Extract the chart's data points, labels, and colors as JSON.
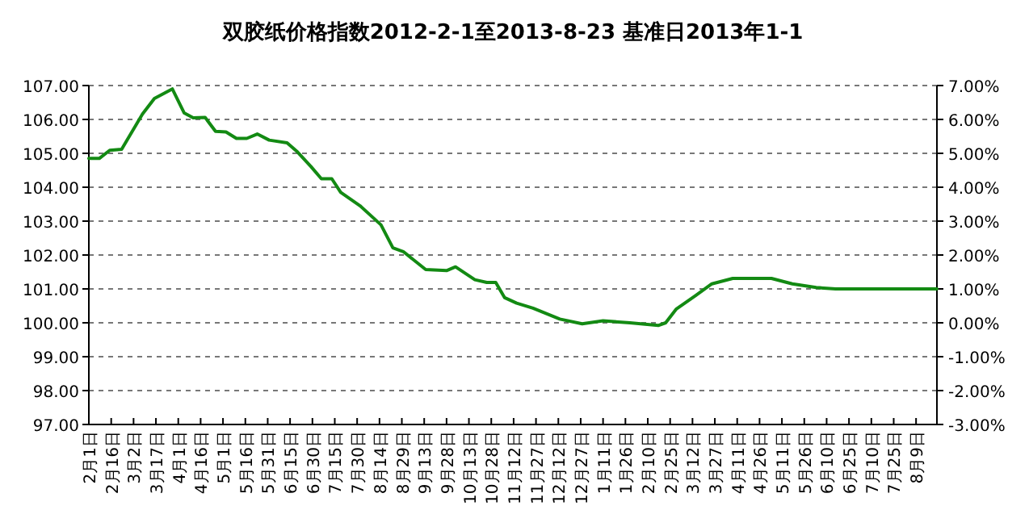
{
  "chart_data": {
    "type": "line",
    "title": "双胶纸价格指数2012-2-1至2013-8-23 基准日2013年1-1",
    "x": [
      "2012-02-01",
      "2012-02-08",
      "2012-02-15",
      "2012-02-23",
      "2012-03-08",
      "2012-03-16",
      "2012-03-28",
      "2012-04-05",
      "2012-04-11",
      "2012-04-19",
      "2012-04-26",
      "2012-05-03",
      "2012-05-10",
      "2012-05-17",
      "2012-05-24",
      "2012-06-01",
      "2012-06-13",
      "2012-06-20",
      "2012-06-29",
      "2012-07-06",
      "2012-07-13",
      "2012-07-19",
      "2012-08-01",
      "2012-08-15",
      "2012-08-23",
      "2012-08-30",
      "2012-09-14",
      "2012-09-28",
      "2012-10-04",
      "2012-10-17",
      "2012-10-25",
      "2012-10-31",
      "2012-11-06",
      "2012-11-14",
      "2012-11-25",
      "2012-12-13",
      "2012-12-28",
      "2013-01-11",
      "2013-01-29",
      "2013-02-17",
      "2013-02-22",
      "2013-03-01",
      "2013-03-14",
      "2013-03-25",
      "2013-04-08",
      "2013-05-04",
      "2013-05-18",
      "2013-06-03",
      "2013-06-16",
      "2013-08-23"
    ],
    "series": [
      {
        "color": "#138a13",
        "values": [
          104.85,
          104.85,
          105.09,
          105.12,
          106.16,
          106.62,
          106.9,
          106.19,
          106.05,
          106.06,
          105.65,
          105.63,
          105.44,
          105.44,
          105.57,
          105.39,
          105.31,
          105.04,
          104.61,
          104.25,
          104.25,
          103.85,
          103.45,
          102.89,
          102.21,
          102.1,
          101.57,
          101.54,
          101.65,
          101.27,
          101.19,
          101.19,
          100.74,
          100.58,
          100.43,
          100.11,
          99.97,
          100.06,
          100.0,
          99.92,
          100.0,
          100.4,
          100.8,
          101.15,
          101.31,
          101.31,
          101.15,
          101.04,
          101.0,
          101.0
        ]
      }
    ],
    "xlim": [
      "2012-02-01",
      "2013-08-23"
    ],
    "xticks": [
      {
        "value": "2012-02-01",
        "label": "2月1日"
      },
      {
        "value": "2012-02-16",
        "label": "2月16日"
      },
      {
        "value": "2012-03-02",
        "label": "3月2日"
      },
      {
        "value": "2012-03-17",
        "label": "3月17日"
      },
      {
        "value": "2012-04-01",
        "label": "4月1日"
      },
      {
        "value": "2012-04-16",
        "label": "4月16日"
      },
      {
        "value": "2012-05-01",
        "label": "5月1日"
      },
      {
        "value": "2012-05-16",
        "label": "5月16日"
      },
      {
        "value": "2012-05-31",
        "label": "5月31日"
      },
      {
        "value": "2012-06-15",
        "label": "6月15日"
      },
      {
        "value": "2012-06-30",
        "label": "6月30日"
      },
      {
        "value": "2012-07-15",
        "label": "7月15日"
      },
      {
        "value": "2012-07-30",
        "label": "7月30日"
      },
      {
        "value": "2012-08-14",
        "label": "8月14日"
      },
      {
        "value": "2012-08-29",
        "label": "8月29日"
      },
      {
        "value": "2012-09-13",
        "label": "9月13日"
      },
      {
        "value": "2012-09-28",
        "label": "9月28日"
      },
      {
        "value": "2012-10-13",
        "label": "10月13日"
      },
      {
        "value": "2012-10-28",
        "label": "10月28日"
      },
      {
        "value": "2012-11-12",
        "label": "11月12日"
      },
      {
        "value": "2012-11-27",
        "label": "11月27日"
      },
      {
        "value": "2012-12-12",
        "label": "12月12日"
      },
      {
        "value": "2012-12-27",
        "label": "12月27日"
      },
      {
        "value": "2013-01-11",
        "label": "1月11日"
      },
      {
        "value": "2013-01-26",
        "label": "1月26日"
      },
      {
        "value": "2013-02-10",
        "label": "2月10日"
      },
      {
        "value": "2013-02-25",
        "label": "2月25日"
      },
      {
        "value": "2013-03-12",
        "label": "3月12日"
      },
      {
        "value": "2013-03-27",
        "label": "3月27日"
      },
      {
        "value": "2013-04-11",
        "label": "4月11日"
      },
      {
        "value": "2013-04-26",
        "label": "4月26日"
      },
      {
        "value": "2013-05-11",
        "label": "5月11日"
      },
      {
        "value": "2013-05-26",
        "label": "5月26日"
      },
      {
        "value": "2013-06-10",
        "label": "6月10日"
      },
      {
        "value": "2013-06-25",
        "label": "6月25日"
      },
      {
        "value": "2013-07-10",
        "label": "7月10日"
      },
      {
        "value": "2013-07-25",
        "label": "7月25日"
      },
      {
        "value": "2013-08-09",
        "label": "8月9日"
      }
    ],
    "ylim": [
      97,
      107
    ],
    "yticks": [
      {
        "value": 97,
        "label": "97.00"
      },
      {
        "value": 98,
        "label": "98.00"
      },
      {
        "value": 99,
        "label": "99.00"
      },
      {
        "value": 100,
        "label": "100.00"
      },
      {
        "value": 101,
        "label": "101.00"
      },
      {
        "value": 102,
        "label": "102.00"
      },
      {
        "value": 103,
        "label": "103.00"
      },
      {
        "value": 104,
        "label": "104.00"
      },
      {
        "value": 105,
        "label": "105.00"
      },
      {
        "value": 106,
        "label": "106.00"
      },
      {
        "value": 107,
        "label": "107.00"
      }
    ],
    "y2lim": [
      -3,
      7
    ],
    "y2ticks": [
      {
        "value": -3,
        "label": "-3.00%"
      },
      {
        "value": -2,
        "label": "-2.00%"
      },
      {
        "value": -1,
        "label": "-1.00%"
      },
      {
        "value": 0,
        "label": "0.00%"
      },
      {
        "value": 1,
        "label": "1.00%"
      },
      {
        "value": 2,
        "label": "2.00%"
      },
      {
        "value": 3,
        "label": "3.00%"
      },
      {
        "value": 4,
        "label": "4.00%"
      },
      {
        "value": 5,
        "label": "5.00%"
      },
      {
        "value": 6,
        "label": "6.00%"
      },
      {
        "value": 7,
        "label": "7.00%"
      }
    ],
    "grid": "y",
    "line_style": "solid",
    "marker": "none"
  }
}
